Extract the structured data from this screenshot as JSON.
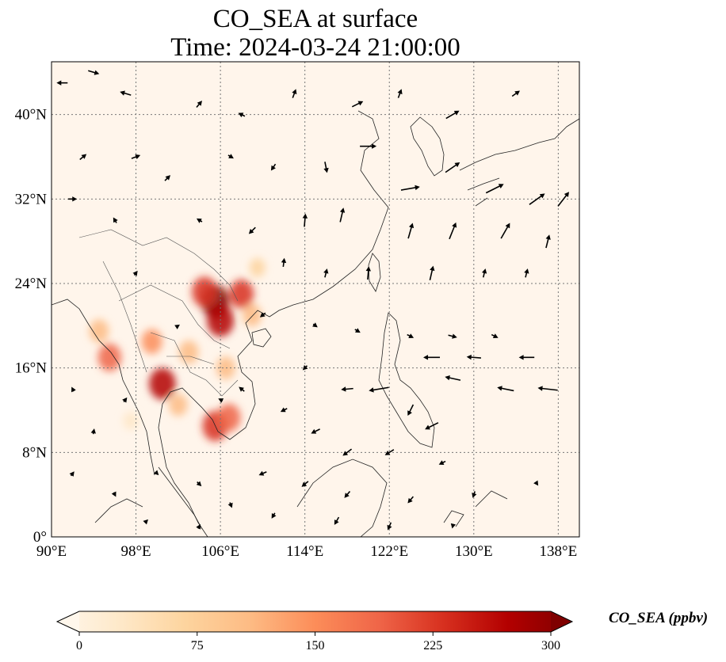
{
  "title": {
    "line1": "CO_SEA at surface",
    "line2": "Time: 2024-03-24 21:00:00"
  },
  "map": {
    "lon_range": [
      90,
      140
    ],
    "lat_range": [
      0,
      45
    ],
    "lon_ticks": [
      "90°E",
      "98°E",
      "106°E",
      "114°E",
      "122°E",
      "130°E",
      "138°E"
    ],
    "lon_tick_values": [
      90,
      98,
      106,
      114,
      122,
      130,
      138
    ],
    "lat_ticks": [
      "0°",
      "8°N",
      "16°N",
      "24°N",
      "32°N",
      "40°N"
    ],
    "lat_tick_values": [
      0,
      8,
      16,
      24,
      32,
      40
    ],
    "gridlines": true,
    "coastlines": true,
    "background_color": "#fff5eb"
  },
  "field": {
    "variable": "CO_SEA",
    "level": "surface",
    "hotspots": [
      {
        "lon": 105.5,
        "lat": 22.3,
        "value": 290
      },
      {
        "lon": 104.5,
        "lat": 23.2,
        "value": 240
      },
      {
        "lon": 108.0,
        "lat": 23.0,
        "value": 220
      },
      {
        "lon": 106.0,
        "lat": 20.5,
        "value": 270
      },
      {
        "lon": 100.5,
        "lat": 14.5,
        "value": 260
      },
      {
        "lon": 105.5,
        "lat": 10.5,
        "value": 240
      },
      {
        "lon": 106.8,
        "lat": 11.3,
        "value": 200
      },
      {
        "lon": 95.5,
        "lat": 17.0,
        "value": 200
      },
      {
        "lon": 94.5,
        "lat": 19.5,
        "value": 130
      },
      {
        "lon": 99.5,
        "lat": 18.5,
        "value": 150
      },
      {
        "lon": 103.0,
        "lat": 17.5,
        "value": 130
      },
      {
        "lon": 106.5,
        "lat": 16.0,
        "value": 120
      },
      {
        "lon": 109.0,
        "lat": 21.0,
        "value": 120
      },
      {
        "lon": 102.0,
        "lat": 12.5,
        "value": 110
      },
      {
        "lon": 109.5,
        "lat": 25.5,
        "value": 60
      },
      {
        "lon": 97.5,
        "lat": 11.0,
        "value": 50
      }
    ]
  },
  "wind_vectors": [
    {
      "lon": 91,
      "lat": 43,
      "u": -1,
      "v": 0
    },
    {
      "lon": 94,
      "lat": 44,
      "u": 1,
      "v": -0.3
    },
    {
      "lon": 97,
      "lat": 42,
      "u": -1,
      "v": 0.3
    },
    {
      "lon": 104,
      "lat": 41,
      "u": 0.5,
      "v": 0.6
    },
    {
      "lon": 108,
      "lat": 40,
      "u": -0.6,
      "v": 0.3
    },
    {
      "lon": 113,
      "lat": 42,
      "u": 0.3,
      "v": 0.8
    },
    {
      "lon": 119,
      "lat": 41,
      "u": 1,
      "v": 0.5
    },
    {
      "lon": 123,
      "lat": 42,
      "u": 0.3,
      "v": 0.8
    },
    {
      "lon": 128,
      "lat": 40,
      "u": 1.2,
      "v": 0.7
    },
    {
      "lon": 134,
      "lat": 42,
      "u": 0.7,
      "v": 0.5
    },
    {
      "lon": 93,
      "lat": 36,
      "u": 0.6,
      "v": 0.5
    },
    {
      "lon": 98,
      "lat": 36,
      "u": 0.8,
      "v": 0.3
    },
    {
      "lon": 101,
      "lat": 34,
      "u": 0.5,
      "v": 0.5
    },
    {
      "lon": 107,
      "lat": 36,
      "u": 0.5,
      "v": -0.3
    },
    {
      "lon": 111,
      "lat": 35,
      "u": -0.4,
      "v": -0.6
    },
    {
      "lon": 116,
      "lat": 35,
      "u": 0.2,
      "v": -1
    },
    {
      "lon": 120,
      "lat": 37,
      "u": 1.5,
      "v": 0
    },
    {
      "lon": 124,
      "lat": 33,
      "u": 1.7,
      "v": 0.3
    },
    {
      "lon": 128,
      "lat": 35,
      "u": 1.3,
      "v": 0.9
    },
    {
      "lon": 132,
      "lat": 33,
      "u": 1.6,
      "v": 0.8
    },
    {
      "lon": 136,
      "lat": 32,
      "u": 1.4,
      "v": 1
    },
    {
      "lon": 138.5,
      "lat": 32,
      "u": 1,
      "v": 1.3
    },
    {
      "lon": 92,
      "lat": 32,
      "u": 0.8,
      "v": 0
    },
    {
      "lon": 96,
      "lat": 30,
      "u": -0.3,
      "v": 0.5
    },
    {
      "lon": 104,
      "lat": 30,
      "u": -0.5,
      "v": 0.3
    },
    {
      "lon": 109,
      "lat": 29,
      "u": -0.6,
      "v": -0.6
    },
    {
      "lon": 114,
      "lat": 30,
      "u": 0.1,
      "v": 1.2
    },
    {
      "lon": 117.5,
      "lat": 30.5,
      "u": 0.3,
      "v": 1.3
    },
    {
      "lon": 124,
      "lat": 29,
      "u": 0.4,
      "v": 1.4
    },
    {
      "lon": 128,
      "lat": 29,
      "u": 0.6,
      "v": 1.5
    },
    {
      "lon": 133,
      "lat": 29,
      "u": 0.8,
      "v": 1.4
    },
    {
      "lon": 137,
      "lat": 28,
      "u": 0.3,
      "v": 1.2
    },
    {
      "lon": 112,
      "lat": 26,
      "u": 0.1,
      "v": 0.8
    },
    {
      "lon": 116,
      "lat": 25,
      "u": 0.2,
      "v": 0.8
    },
    {
      "lon": 120,
      "lat": 25,
      "u": 0.1,
      "v": 1.2
    },
    {
      "lon": 126,
      "lat": 25,
      "u": 0.3,
      "v": 1.3
    },
    {
      "lon": 131,
      "lat": 25,
      "u": 0.2,
      "v": 0.8
    },
    {
      "lon": 135,
      "lat": 25,
      "u": 0.2,
      "v": 0.8
    },
    {
      "lon": 98,
      "lat": 25,
      "u": 0.3,
      "v": 0.4
    },
    {
      "lon": 110,
      "lat": 21,
      "u": -0.5,
      "v": -0.4
    },
    {
      "lon": 115,
      "lat": 20,
      "u": 0.4,
      "v": -0.3
    },
    {
      "lon": 119,
      "lat": 19.5,
      "u": 0.5,
      "v": -0.3
    },
    {
      "lon": 124,
      "lat": 19,
      "u": 0.6,
      "v": -0.3
    },
    {
      "lon": 128,
      "lat": 19,
      "u": 0.8,
      "v": -0.2
    },
    {
      "lon": 132,
      "lat": 19,
      "u": 0.6,
      "v": -0.3
    },
    {
      "lon": 126,
      "lat": 17,
      "u": -1.5,
      "v": 0
    },
    {
      "lon": 130,
      "lat": 17,
      "u": -1.3,
      "v": 0.1
    },
    {
      "lon": 135,
      "lat": 17,
      "u": -1.4,
      "v": 0
    },
    {
      "lon": 128,
      "lat": 15,
      "u": -1.4,
      "v": 0.3
    },
    {
      "lon": 133,
      "lat": 14,
      "u": -1.5,
      "v": 0.3
    },
    {
      "lon": 137,
      "lat": 14,
      "u": -1.8,
      "v": 0.2
    },
    {
      "lon": 114,
      "lat": 16,
      "u": -0.4,
      "v": -0.4
    },
    {
      "lon": 118,
      "lat": 14,
      "u": -1.1,
      "v": -0.1
    },
    {
      "lon": 121,
      "lat": 14,
      "u": -1.8,
      "v": -0.3
    },
    {
      "lon": 124,
      "lat": 12,
      "u": -0.5,
      "v": -1
    },
    {
      "lon": 126,
      "lat": 10.5,
      "u": -1.2,
      "v": -0.6
    },
    {
      "lon": 112,
      "lat": 12,
      "u": -0.6,
      "v": -0.3
    },
    {
      "lon": 115,
      "lat": 10,
      "u": -0.8,
      "v": -0.4
    },
    {
      "lon": 118,
      "lat": 8,
      "u": -0.8,
      "v": -0.6
    },
    {
      "lon": 122,
      "lat": 8,
      "u": -0.8,
      "v": -0.5
    },
    {
      "lon": 127,
      "lat": 7,
      "u": -0.6,
      "v": -0.3
    },
    {
      "lon": 110,
      "lat": 6,
      "u": -0.7,
      "v": -0.3
    },
    {
      "lon": 114,
      "lat": 5,
      "u": -0.6,
      "v": -0.5
    },
    {
      "lon": 118,
      "lat": 4,
      "u": -0.5,
      "v": -0.6
    },
    {
      "lon": 124,
      "lat": 3.5,
      "u": -0.5,
      "v": -0.6
    },
    {
      "lon": 130,
      "lat": 4,
      "u": -0.2,
      "v": -0.6
    },
    {
      "lon": 136,
      "lat": 5,
      "u": 0.2,
      "v": -0.3
    },
    {
      "lon": 111,
      "lat": 2,
      "u": -0.3,
      "v": -0.5
    },
    {
      "lon": 117,
      "lat": 1.5,
      "u": -0.4,
      "v": -0.7
    },
    {
      "lon": 122,
      "lat": 1,
      "u": -0.3,
      "v": -0.7
    },
    {
      "lon": 128,
      "lat": 1,
      "u": -0.1,
      "v": -0.4
    },
    {
      "lon": 92,
      "lat": 14,
      "u": -0.2,
      "v": 0.4
    },
    {
      "lon": 94,
      "lat": 10,
      "u": 0.1,
      "v": 0.5
    },
    {
      "lon": 92,
      "lat": 6,
      "u": 0.3,
      "v": 0.4
    },
    {
      "lon": 96,
      "lat": 4,
      "u": 0.2,
      "v": -0.4
    },
    {
      "lon": 100,
      "lat": 6,
      "u": 0.3,
      "v": -0.3
    },
    {
      "lon": 104,
      "lat": 5,
      "u": 0.4,
      "v": -0.4
    },
    {
      "lon": 107,
      "lat": 3,
      "u": 0.2,
      "v": -0.5
    },
    {
      "lon": 99,
      "lat": 1.5,
      "u": 0.3,
      "v": 0.3
    },
    {
      "lon": 104,
      "lat": 1,
      "u": 0.2,
      "v": 0.4
    },
    {
      "lon": 97,
      "lat": 13,
      "u": 0.3,
      "v": 0.4
    },
    {
      "lon": 106,
      "lat": 13,
      "u": -0.4,
      "v": 0.2
    },
    {
      "lon": 102,
      "lat": 20,
      "u": 0.3,
      "v": 0.2
    },
    {
      "lon": 108,
      "lat": 14,
      "u": -0.5,
      "v": 0.4
    }
  ],
  "colorbar": {
    "min": 0,
    "max": 300,
    "ticks": [
      "0",
      "75",
      "150",
      "225",
      "300"
    ],
    "tick_values": [
      0,
      75,
      150,
      225,
      300
    ],
    "label": "CO_SEA (ppbv)",
    "colormap": "OrRd",
    "extend": "both",
    "stops": [
      "#fff7ec",
      "#fee8c8",
      "#fdd49e",
      "#fdbb84",
      "#fc8d59",
      "#ef6548",
      "#d7301f",
      "#b30000",
      "#7f0000"
    ]
  }
}
